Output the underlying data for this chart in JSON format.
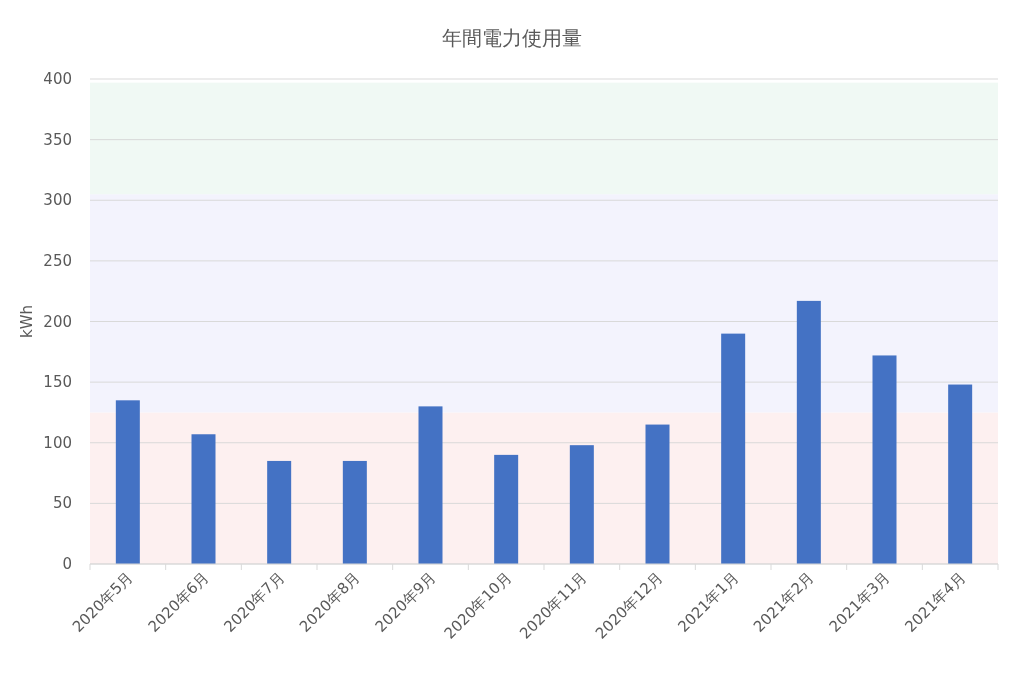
{
  "chart_data": {
    "type": "bar",
    "title": "年間電力使用量",
    "ylabel": "kWh",
    "categories": [
      "2020年5月",
      "2020年6月",
      "2020年7月",
      "2020年8月",
      "2020年9月",
      "2020年10月",
      "2020年11月",
      "2020年12月",
      "2021年1月",
      "2021年2月",
      "2021年3月",
      "2021年4月"
    ],
    "values": [
      135,
      107,
      85,
      85,
      130,
      90,
      98,
      115,
      190,
      217,
      172,
      148
    ],
    "color": "#4472c4",
    "ylim": [
      0,
      400
    ],
    "yticks": [
      0,
      50,
      100,
      150,
      200,
      250,
      300,
      350,
      400
    ],
    "grid": "y",
    "bands": [
      {
        "axis": "y",
        "from": 0,
        "to": 125,
        "color": "#fdf0f0"
      },
      {
        "axis": "y",
        "from": 125,
        "to": 305,
        "color": "#f3f3fd"
      },
      {
        "axis": "y",
        "from": 305,
        "to": 397,
        "color": "#f0f9f4"
      }
    ]
  }
}
